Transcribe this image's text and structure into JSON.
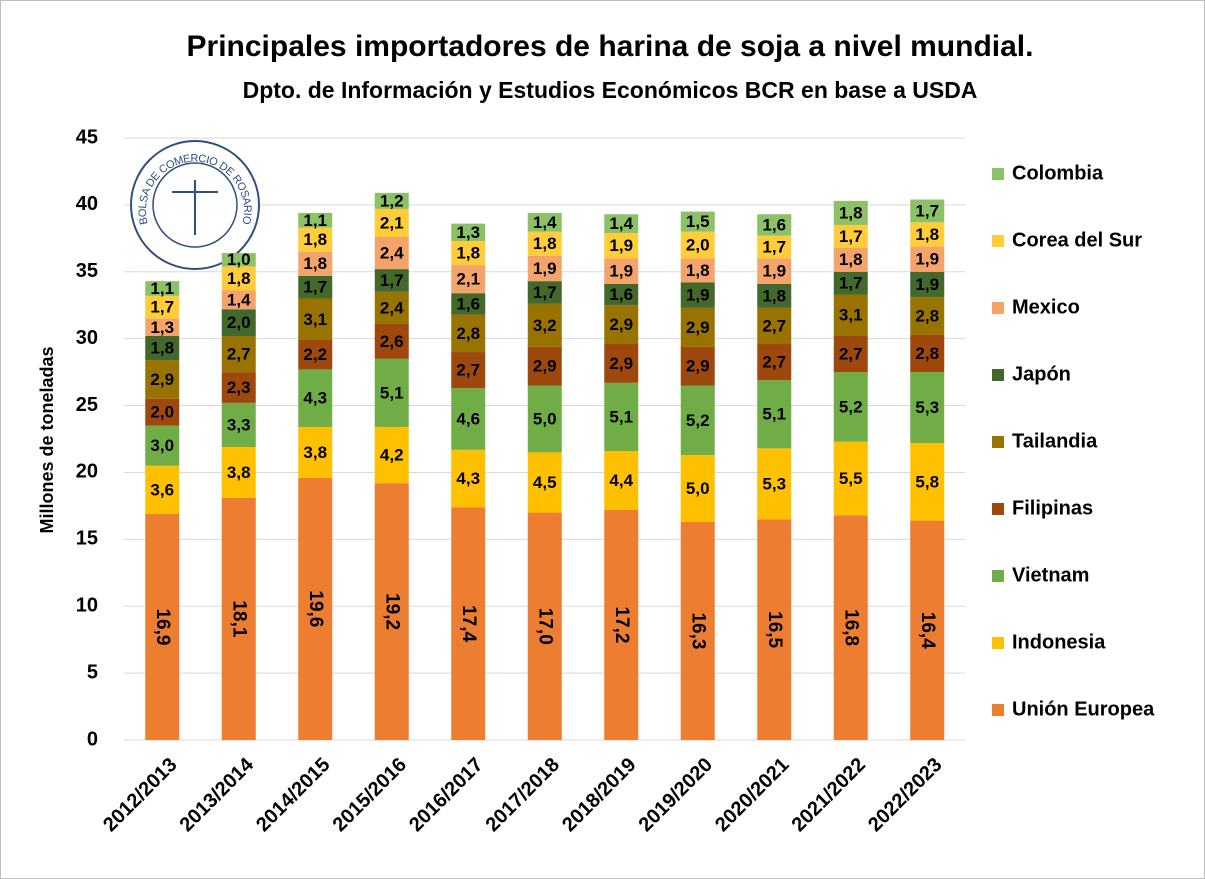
{
  "chart_data": {
    "type": "stacked_bar",
    "title": "Principales importadores de harina de soja a nivel mundial.",
    "subtitle": "Dpto. de Información y Estudios Económicos BCR en base a USDA",
    "y_label": "Millones de toneladas",
    "logo_text": "BOLSA DE COMERCIO DE ROSARIO",
    "categories": [
      "2012/2013",
      "2013/2014",
      "2014/2015",
      "2015/2016",
      "2016/2017",
      "2017/2018",
      "2018/2019",
      "2019/2020",
      "2020/2021",
      "2021/2022",
      "2022/2023"
    ],
    "ylim": [
      0,
      45
    ],
    "yticks": [
      0,
      5,
      10,
      15,
      20,
      25,
      30,
      35,
      40,
      45
    ],
    "grid": true,
    "legend": "right",
    "series": [
      {
        "name": "Unión Europea",
        "color": "#ED7D31",
        "values": [
          16.9,
          18.1,
          19.6,
          19.2,
          17.4,
          17.0,
          17.2,
          16.3,
          16.5,
          16.8,
          16.4
        ],
        "value_labels": [
          "16,9",
          "18,1",
          "19,6",
          "19,2",
          "17,4",
          "17,0",
          "17,2",
          "16,3",
          "16,5",
          "16,8",
          "16,4"
        ]
      },
      {
        "name": "Indonesia",
        "color": "#FFC000",
        "values": [
          3.6,
          3.8,
          3.8,
          4.2,
          4.3,
          4.5,
          4.4,
          5.0,
          5.3,
          5.5,
          5.8
        ],
        "value_labels": [
          "3,6",
          "3,8",
          "3,8",
          "4,2",
          "4,3",
          "4,5",
          "4,4",
          "5,0",
          "5,3",
          "5,5",
          "5,8"
        ]
      },
      {
        "name": "Vietnam",
        "color": "#70AD47",
        "values": [
          3.0,
          3.3,
          4.3,
          5.1,
          4.6,
          5.0,
          5.1,
          5.2,
          5.1,
          5.2,
          5.3
        ],
        "value_labels": [
          "3,0",
          "3,3",
          "4,3",
          "5,1",
          "4,6",
          "5,0",
          "5,1",
          "5,2",
          "5,1",
          "5,2",
          "5,3"
        ]
      },
      {
        "name": "Filipinas",
        "color": "#9E480E",
        "values": [
          2.0,
          2.3,
          2.2,
          2.6,
          2.7,
          2.9,
          2.9,
          2.9,
          2.7,
          2.7,
          2.8
        ],
        "value_labels": [
          "2,0",
          "2,3",
          "2,2",
          "2,6",
          "2,7",
          "2,9",
          "2,9",
          "2,9",
          "2,7",
          "2,7",
          "2,8"
        ]
      },
      {
        "name": "Tailandia",
        "color": "#997300",
        "values": [
          2.9,
          2.7,
          3.1,
          2.4,
          2.8,
          3.2,
          2.9,
          2.9,
          2.7,
          3.1,
          2.8
        ],
        "value_labels": [
          "2,9",
          "2,7",
          "3,1",
          "2,4",
          "2,8",
          "3,2",
          "2,9",
          "2,9",
          "2,7",
          "3,1",
          "2,8"
        ]
      },
      {
        "name": "Japón",
        "color": "#43682B",
        "values": [
          1.8,
          2.0,
          1.7,
          1.7,
          1.6,
          1.7,
          1.6,
          1.9,
          1.8,
          1.7,
          1.9
        ],
        "value_labels": [
          "1,8",
          "2,0",
          "1,7",
          "1,7",
          "1,6",
          "1,7",
          "1,6",
          "1,9",
          "1,8",
          "1,7",
          "1,9"
        ]
      },
      {
        "name": "Mexico",
        "color": "#F4A46A",
        "values": [
          1.3,
          1.4,
          1.8,
          2.4,
          2.1,
          1.9,
          1.9,
          1.8,
          1.9,
          1.8,
          1.9
        ],
        "value_labels": [
          "1,3",
          "1,4",
          "1,8",
          "2,4",
          "2,1",
          "1,9",
          "1,9",
          "1,8",
          "1,9",
          "1,8",
          "1,9"
        ]
      },
      {
        "name": "Corea del Sur",
        "color": "#FFCD3A",
        "values": [
          1.7,
          1.8,
          1.8,
          2.1,
          1.8,
          1.8,
          1.9,
          2.0,
          1.7,
          1.7,
          1.8
        ],
        "value_labels": [
          "1,7",
          "1,8",
          "1,8",
          "2,1",
          "1,8",
          "1,8",
          "1,9",
          "2,0",
          "1,7",
          "1,7",
          "1,8"
        ]
      },
      {
        "name": "Colombia",
        "color": "#8CC168",
        "values": [
          1.1,
          1.0,
          1.1,
          1.2,
          1.3,
          1.4,
          1.4,
          1.5,
          1.6,
          1.8,
          1.7
        ],
        "value_labels": [
          "1,1",
          "1,0",
          "1,1",
          "1,2",
          "1,3",
          "1,4",
          "1,4",
          "1,5",
          "1,6",
          "1,8",
          "1,7"
        ]
      }
    ]
  }
}
